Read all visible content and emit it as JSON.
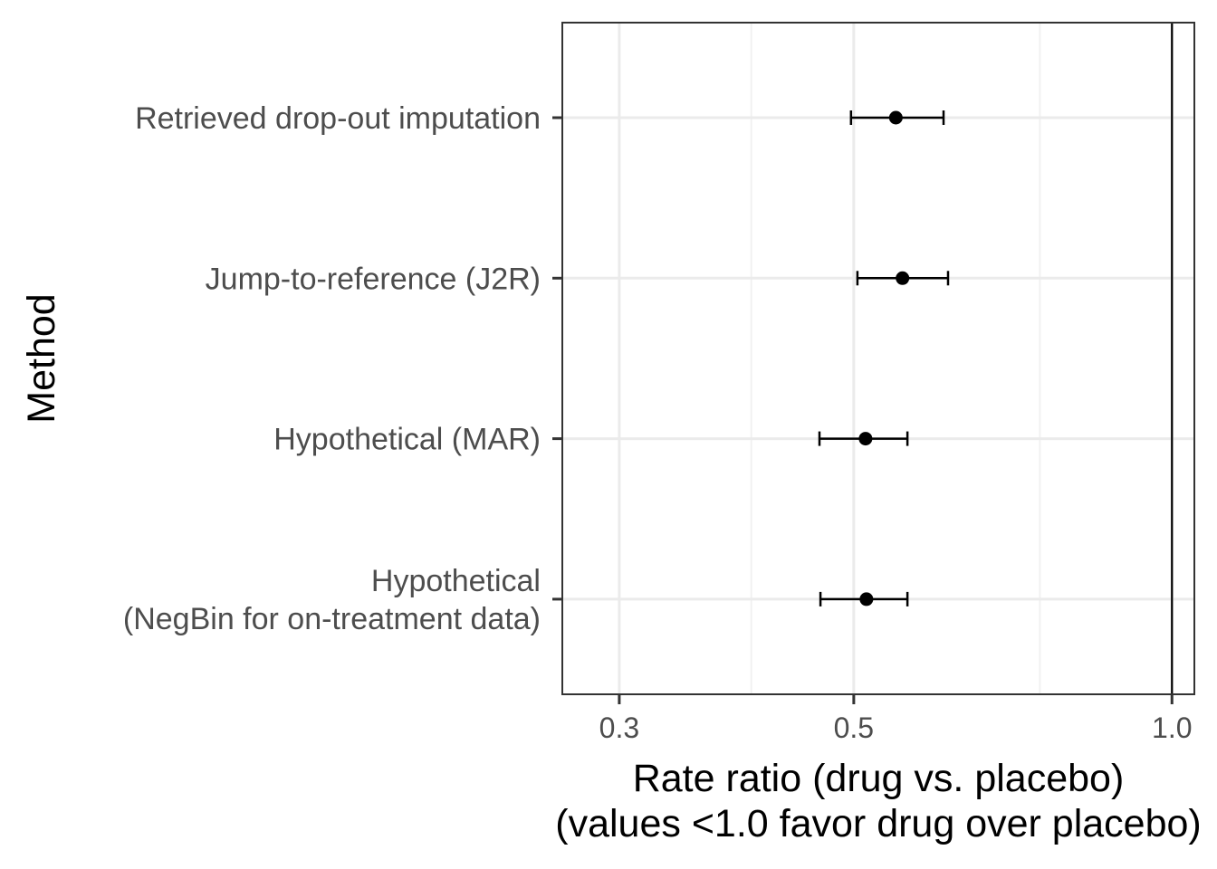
{
  "chart_data": {
    "type": "scatter",
    "subtype": "forest-plot-with-error-bars",
    "xlabel_lines": [
      "Rate ratio (drug vs. placebo)",
      "(values <1.0 favor drug over placebo)"
    ],
    "ylabel": "Method",
    "x_scale": "log",
    "xlim": [
      0.265,
      1.05
    ],
    "x_ticks": [
      0.3,
      0.5,
      1.0
    ],
    "x_tick_labels": [
      "0.3",
      "0.5",
      "1.0"
    ],
    "x_minor_gridlines": [
      0.4,
      0.75
    ],
    "reference_line_x": 1.0,
    "grid": true,
    "categories": [
      {
        "lines": [
          "Retrieved drop-out imputation"
        ]
      },
      {
        "lines": [
          "Jump-to-reference (J2R)"
        ]
      },
      {
        "lines": [
          "Hypothetical (MAR)"
        ]
      },
      {
        "lines": [
          "Hypothetical",
          "(NegBin for on-treatment data)"
        ]
      }
    ],
    "estimates": [
      0.548,
      0.556,
      0.513,
      0.514
    ],
    "ci_lower": [
      0.497,
      0.504,
      0.464,
      0.465
    ],
    "ci_upper": [
      0.608,
      0.614,
      0.562,
      0.562
    ]
  }
}
